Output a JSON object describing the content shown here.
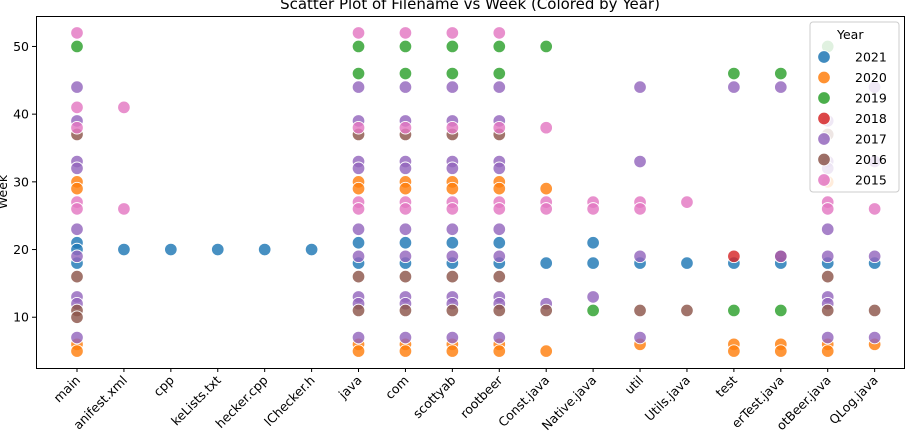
{
  "chart_data": {
    "type": "scatter",
    "title": "Scatter Plot of Filename vs Week (Colored by Year)",
    "xlabel": "",
    "ylabel": "Week",
    "ylim": [
      2.5,
      54.5
    ],
    "yticks": [
      10,
      20,
      30,
      40,
      50
    ],
    "grid": false,
    "legend_position": "top-right",
    "legend_title": "Year",
    "categories": [
      "main",
      "AndroidManifest.xml",
      "cpp",
      "CMakeLists.txt",
      "toolChecker.cpp",
      "toolChecker.h",
      "java",
      "com",
      "scottyab",
      "rootbeer",
      "Const.java",
      "RootBeerNative.java",
      "util",
      "Utils.java",
      "test",
      "RootBeerTest.java",
      "RootBeer.java",
      "QLog.java"
    ],
    "tick_labels": [
      "main",
      "anifest.xml",
      "cpp",
      "keLists.txt",
      "hecker.cpp",
      "lChecker.h",
      "java",
      "com",
      "scottyab",
      "rootbeer",
      "Const.java",
      "Native.java",
      "util",
      "Utils.java",
      "test",
      "erTest.java",
      "otBeer.java",
      "QLog.java"
    ],
    "series": [
      {
        "name": "2021",
        "color": "#1f77b4",
        "points": [
          [
            "main",
            21
          ],
          [
            "main",
            20
          ],
          [
            "main",
            18
          ],
          [
            "AndroidManifest.xml",
            20
          ],
          [
            "cpp",
            20
          ],
          [
            "CMakeLists.txt",
            20
          ],
          [
            "toolChecker.cpp",
            20
          ],
          [
            "toolChecker.h",
            20
          ],
          [
            "java",
            21
          ],
          [
            "java",
            18
          ],
          [
            "com",
            21
          ],
          [
            "com",
            18
          ],
          [
            "scottyab",
            21
          ],
          [
            "scottyab",
            18
          ],
          [
            "rootbeer",
            21
          ],
          [
            "rootbeer",
            18
          ],
          [
            "Const.java",
            18
          ],
          [
            "RootBeerNative.java",
            21
          ],
          [
            "RootBeerNative.java",
            18
          ],
          [
            "util",
            18
          ],
          [
            "Utils.java",
            18
          ],
          [
            "test",
            18
          ],
          [
            "RootBeerTest.java",
            18
          ],
          [
            "RootBeer.java",
            18
          ],
          [
            "QLog.java",
            18
          ]
        ]
      },
      {
        "name": "2020",
        "color": "#ff7f0e",
        "points": [
          [
            "main",
            30
          ],
          [
            "main",
            29
          ],
          [
            "main",
            6
          ],
          [
            "main",
            5
          ],
          [
            "java",
            30
          ],
          [
            "java",
            29
          ],
          [
            "java",
            6
          ],
          [
            "java",
            5
          ],
          [
            "com",
            30
          ],
          [
            "com",
            29
          ],
          [
            "com",
            6
          ],
          [
            "com",
            5
          ],
          [
            "scottyab",
            30
          ],
          [
            "scottyab",
            29
          ],
          [
            "scottyab",
            6
          ],
          [
            "scottyab",
            5
          ],
          [
            "rootbeer",
            30
          ],
          [
            "rootbeer",
            29
          ],
          [
            "rootbeer",
            6
          ],
          [
            "rootbeer",
            5
          ],
          [
            "Const.java",
            29
          ],
          [
            "Const.java",
            5
          ],
          [
            "util",
            6
          ],
          [
            "test",
            6
          ],
          [
            "test",
            5
          ],
          [
            "RootBeerTest.java",
            6
          ],
          [
            "RootBeerTest.java",
            5
          ],
          [
            "RootBeer.java",
            30
          ],
          [
            "RootBeer.java",
            6
          ],
          [
            "RootBeer.java",
            5
          ],
          [
            "QLog.java",
            6
          ]
        ]
      },
      {
        "name": "2019",
        "color": "#2ca02c",
        "points": [
          [
            "main",
            50
          ],
          [
            "java",
            50
          ],
          [
            "java",
            46
          ],
          [
            "com",
            50
          ],
          [
            "com",
            46
          ],
          [
            "scottyab",
            50
          ],
          [
            "scottyab",
            46
          ],
          [
            "rootbeer",
            50
          ],
          [
            "rootbeer",
            46
          ],
          [
            "Const.java",
            50
          ],
          [
            "RootBeerNative.java",
            11
          ],
          [
            "test",
            46
          ],
          [
            "test",
            11
          ],
          [
            "RootBeerTest.java",
            46
          ],
          [
            "RootBeerTest.java",
            11
          ],
          [
            "RootBeer.java",
            50
          ]
        ]
      },
      {
        "name": "2018",
        "color": "#d62728",
        "points": [
          [
            "test",
            19
          ],
          [
            "RootBeerTest.java",
            19
          ]
        ]
      },
      {
        "name": "2017",
        "color": "#9467bd",
        "points": [
          [
            "main",
            44
          ],
          [
            "main",
            39
          ],
          [
            "main",
            33
          ],
          [
            "main",
            32
          ],
          [
            "main",
            23
          ],
          [
            "main",
            19
          ],
          [
            "main",
            13
          ],
          [
            "main",
            12
          ],
          [
            "main",
            7
          ],
          [
            "java",
            44
          ],
          [
            "java",
            39
          ],
          [
            "java",
            33
          ],
          [
            "java",
            32
          ],
          [
            "java",
            23
          ],
          [
            "java",
            19
          ],
          [
            "java",
            13
          ],
          [
            "java",
            12
          ],
          [
            "java",
            7
          ],
          [
            "com",
            44
          ],
          [
            "com",
            39
          ],
          [
            "com",
            33
          ],
          [
            "com",
            32
          ],
          [
            "com",
            23
          ],
          [
            "com",
            19
          ],
          [
            "com",
            13
          ],
          [
            "com",
            12
          ],
          [
            "com",
            7
          ],
          [
            "scottyab",
            44
          ],
          [
            "scottyab",
            39
          ],
          [
            "scottyab",
            33
          ],
          [
            "scottyab",
            32
          ],
          [
            "scottyab",
            23
          ],
          [
            "scottyab",
            19
          ],
          [
            "scottyab",
            13
          ],
          [
            "scottyab",
            12
          ],
          [
            "scottyab",
            7
          ],
          [
            "rootbeer",
            44
          ],
          [
            "rootbeer",
            39
          ],
          [
            "rootbeer",
            33
          ],
          [
            "rootbeer",
            32
          ],
          [
            "rootbeer",
            23
          ],
          [
            "rootbeer",
            19
          ],
          [
            "rootbeer",
            13
          ],
          [
            "rootbeer",
            12
          ],
          [
            "rootbeer",
            7
          ],
          [
            "Const.java",
            12
          ],
          [
            "RootBeerNative.java",
            13
          ],
          [
            "util",
            44
          ],
          [
            "util",
            33
          ],
          [
            "util",
            19
          ],
          [
            "util",
            7
          ],
          [
            "test",
            44
          ],
          [
            "RootBeerTest.java",
            44
          ],
          [
            "RootBeerTest.java",
            19
          ],
          [
            "RootBeer.java",
            39
          ],
          [
            "RootBeer.java",
            33
          ],
          [
            "RootBeer.java",
            32
          ],
          [
            "RootBeer.java",
            23
          ],
          [
            "RootBeer.java",
            19
          ],
          [
            "RootBeer.java",
            13
          ],
          [
            "RootBeer.java",
            12
          ],
          [
            "RootBeer.java",
            7
          ],
          [
            "QLog.java",
            44
          ],
          [
            "QLog.java",
            33
          ],
          [
            "QLog.java",
            19
          ],
          [
            "QLog.java",
            7
          ]
        ]
      },
      {
        "name": "2016",
        "color": "#8c564b",
        "points": [
          [
            "main",
            37
          ],
          [
            "main",
            16
          ],
          [
            "main",
            11
          ],
          [
            "main",
            10
          ],
          [
            "java",
            37
          ],
          [
            "java",
            16
          ],
          [
            "java",
            11
          ],
          [
            "com",
            37
          ],
          [
            "com",
            16
          ],
          [
            "com",
            11
          ],
          [
            "scottyab",
            37
          ],
          [
            "scottyab",
            16
          ],
          [
            "scottyab",
            11
          ],
          [
            "rootbeer",
            37
          ],
          [
            "rootbeer",
            16
          ],
          [
            "rootbeer",
            11
          ],
          [
            "Const.java",
            11
          ],
          [
            "util",
            11
          ],
          [
            "Utils.java",
            11
          ],
          [
            "RootBeer.java",
            37
          ],
          [
            "RootBeer.java",
            16
          ],
          [
            "RootBeer.java",
            11
          ],
          [
            "QLog.java",
            11
          ]
        ]
      },
      {
        "name": "2015",
        "color": "#e377c2",
        "points": [
          [
            "main",
            52
          ],
          [
            "main",
            41
          ],
          [
            "main",
            38
          ],
          [
            "main",
            27
          ],
          [
            "main",
            26
          ],
          [
            "AndroidManifest.xml",
            41
          ],
          [
            "AndroidManifest.xml",
            26
          ],
          [
            "java",
            52
          ],
          [
            "java",
            38
          ],
          [
            "java",
            27
          ],
          [
            "java",
            26
          ],
          [
            "com",
            52
          ],
          [
            "com",
            38
          ],
          [
            "com",
            27
          ],
          [
            "com",
            26
          ],
          [
            "scottyab",
            52
          ],
          [
            "scottyab",
            38
          ],
          [
            "scottyab",
            27
          ],
          [
            "scottyab",
            26
          ],
          [
            "rootbeer",
            52
          ],
          [
            "rootbeer",
            38
          ],
          [
            "rootbeer",
            27
          ],
          [
            "rootbeer",
            26
          ],
          [
            "Const.java",
            38
          ],
          [
            "Const.java",
            27
          ],
          [
            "Const.java",
            26
          ],
          [
            "RootBeerNative.java",
            27
          ],
          [
            "RootBeerNative.java",
            26
          ],
          [
            "util",
            27
          ],
          [
            "util",
            26
          ],
          [
            "Utils.java",
            27
          ],
          [
            "RootBeer.java",
            27
          ],
          [
            "RootBeer.java",
            26
          ],
          [
            "QLog.java",
            26
          ]
        ]
      }
    ]
  }
}
